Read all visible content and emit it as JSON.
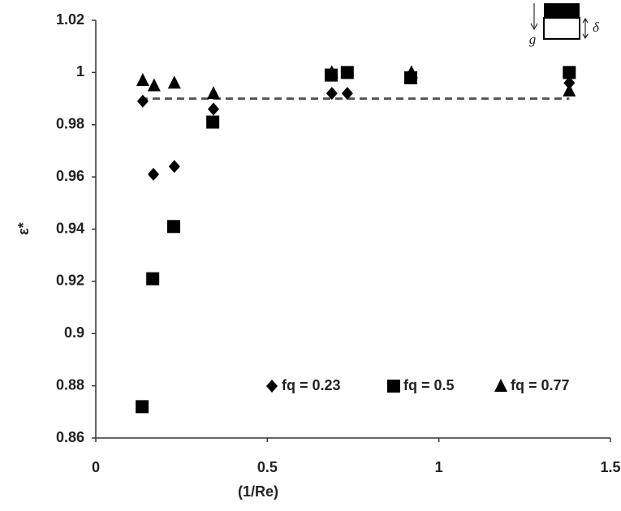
{
  "chart_data": {
    "type": "scatter",
    "x_label": "(1/Re)",
    "y_label": "ε*",
    "xlim": [
      0,
      1.5
    ],
    "xticks": [
      0,
      0.5,
      1,
      1.5
    ],
    "ylim": [
      0.86,
      1.02
    ],
    "yticks": [
      0.86,
      0.88,
      0.9,
      0.92,
      0.94,
      0.96,
      0.98,
      1,
      1.02
    ],
    "legend": "lower right",
    "series": [
      {
        "name": "fq = 0.23",
        "marker": "diamond",
        "color": "#000000",
        "x": [
          0.137,
          0.168,
          0.229,
          0.343,
          0.688,
          0.733,
          0.92,
          1.38
        ],
        "values": [
          0.989,
          0.961,
          0.964,
          0.986,
          0.992,
          0.992,
          0.999,
          0.996
        ]
      },
      {
        "name": "fq = 0.5",
        "marker": "square",
        "color": "#000000",
        "x": [
          0.135,
          0.166,
          0.227,
          0.341,
          0.686,
          0.733,
          0.918,
          1.38
        ],
        "values": [
          0.872,
          0.921,
          0.941,
          0.981,
          0.999,
          1.0,
          0.998,
          1.0
        ]
      },
      {
        "name": "fq = 0.77",
        "marker": "triangle",
        "color": "#000000",
        "x": [
          0.137,
          0.17,
          0.229,
          0.343,
          0.688,
          0.92,
          1.38
        ],
        "values": [
          0.997,
          0.995,
          0.996,
          0.992,
          1.0,
          1.0,
          0.993
        ]
      }
    ],
    "reference_line": {
      "y": 0.99,
      "x": [
        0.13,
        1.38
      ],
      "color": "#555555"
    },
    "inset_labels": [
      "g",
      "δ"
    ]
  }
}
